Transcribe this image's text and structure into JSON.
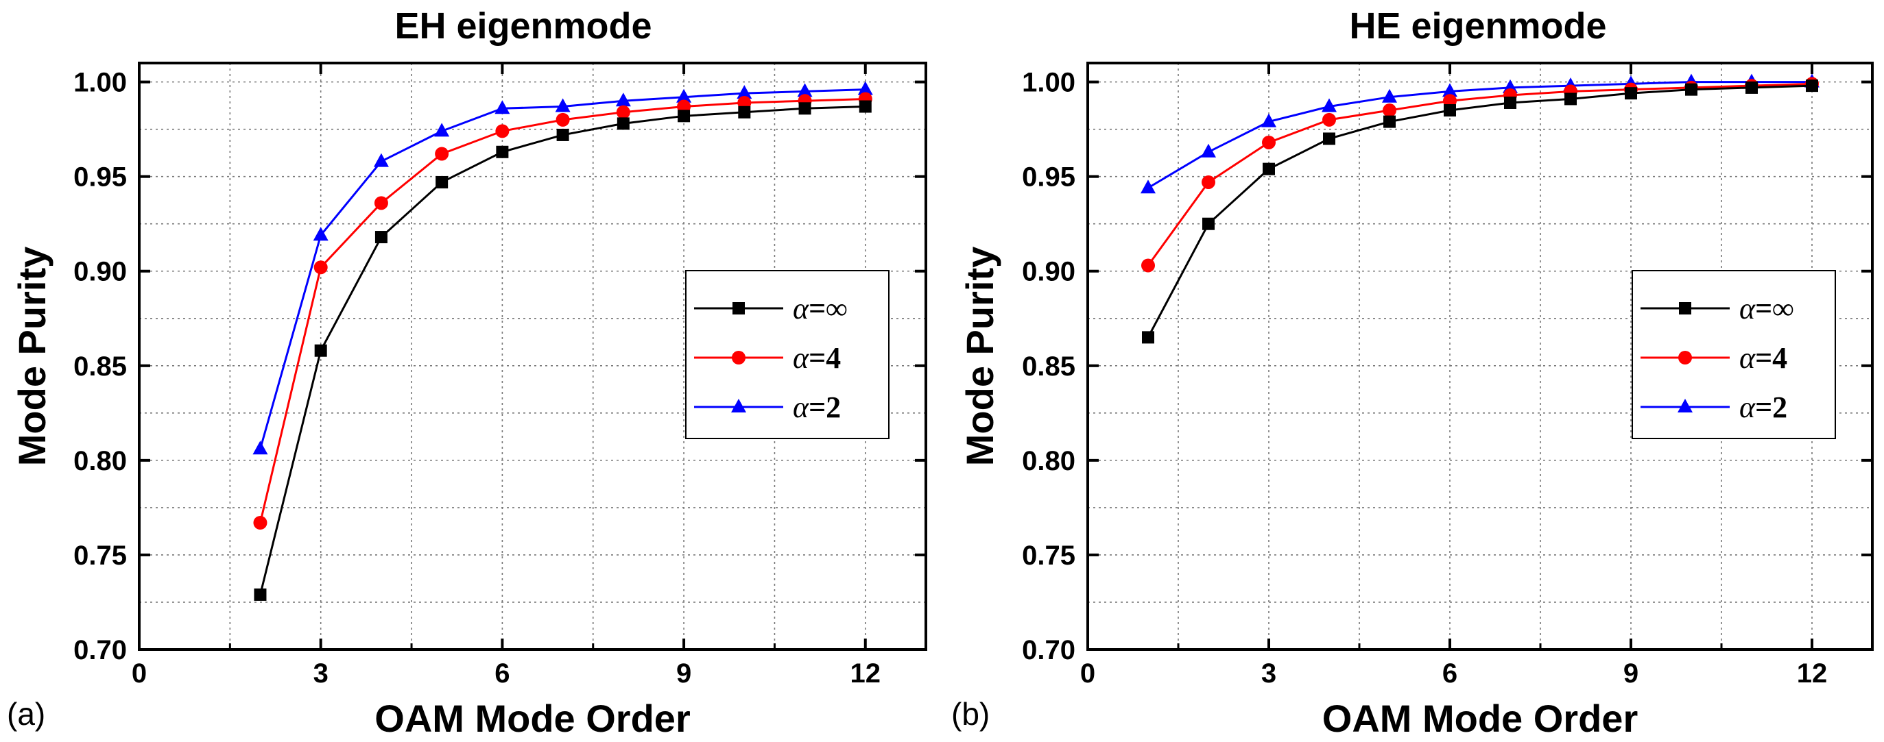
{
  "chart_data": [
    {
      "type": "line",
      "panel_label": "(a)",
      "title": "EH eigenmode",
      "xlabel": "OAM Mode Order",
      "ylabel": "Mode Purity",
      "xlim": [
        0,
        13
      ],
      "ylim": [
        0.7,
        1.01
      ],
      "xticks": [
        0,
        3,
        6,
        9,
        12
      ],
      "xtick_labels": [
        "0",
        "3",
        "6",
        "9",
        "12"
      ],
      "yticks": [
        0.7,
        0.75,
        0.8,
        0.85,
        0.9,
        0.95,
        1.0
      ],
      "ytick_labels": [
        "0.70",
        "0.75",
        "0.80",
        "0.85",
        "0.90",
        "0.95",
        "1.00"
      ],
      "grid": true,
      "legend_position": "right",
      "x": [
        2,
        3,
        4,
        5,
        6,
        7,
        8,
        9,
        10,
        11,
        12
      ],
      "series": [
        {
          "name_symbol": "α",
          "name_value": "=∞",
          "color": "#000000",
          "marker": "square",
          "values": [
            0.729,
            0.858,
            0.918,
            0.947,
            0.963,
            0.972,
            0.978,
            0.982,
            0.984,
            0.986,
            0.987
          ]
        },
        {
          "name_symbol": "α",
          "name_value": "=4",
          "color": "#ff0000",
          "marker": "circle",
          "values": [
            0.767,
            0.902,
            0.936,
            0.962,
            0.974,
            0.98,
            0.984,
            0.987,
            0.989,
            0.99,
            0.991
          ]
        },
        {
          "name_symbol": "α",
          "name_value": "=2",
          "color": "#0000ff",
          "marker": "triangle",
          "values": [
            0.806,
            0.919,
            0.958,
            0.974,
            0.986,
            0.987,
            0.99,
            0.992,
            0.994,
            0.995,
            0.996
          ]
        }
      ]
    },
    {
      "type": "line",
      "panel_label": "(b)",
      "title": "HE eigenmode",
      "xlabel": "OAM Mode Order",
      "ylabel": "Mode Purity",
      "xlim": [
        0,
        13
      ],
      "ylim": [
        0.7,
        1.01
      ],
      "xticks": [
        0,
        3,
        6,
        9,
        12
      ],
      "xtick_labels": [
        "0",
        "3",
        "6",
        "9",
        "12"
      ],
      "yticks": [
        0.7,
        0.75,
        0.8,
        0.85,
        0.9,
        0.95,
        1.0
      ],
      "ytick_labels": [
        "0.70",
        "0.75",
        "0.80",
        "0.85",
        "0.90",
        "0.95",
        "1.00"
      ],
      "grid": true,
      "legend_position": "right",
      "x": [
        1,
        2,
        3,
        4,
        5,
        6,
        7,
        8,
        9,
        10,
        11,
        12
      ],
      "series": [
        {
          "name_symbol": "α",
          "name_value": "=∞",
          "color": "#000000",
          "marker": "square",
          "values": [
            0.865,
            0.925,
            0.954,
            0.97,
            0.979,
            0.985,
            0.989,
            0.991,
            0.994,
            0.996,
            0.997,
            0.998
          ]
        },
        {
          "name_symbol": "α",
          "name_value": "=4",
          "color": "#ff0000",
          "marker": "circle",
          "values": [
            0.903,
            0.947,
            0.968,
            0.98,
            0.985,
            0.99,
            0.993,
            0.995,
            0.996,
            0.997,
            0.998,
            0.999
          ]
        },
        {
          "name_symbol": "α",
          "name_value": "=2",
          "color": "#0000ff",
          "marker": "triangle",
          "values": [
            0.944,
            0.963,
            0.979,
            0.987,
            0.992,
            0.995,
            0.997,
            0.998,
            0.999,
            1.0,
            1.0,
            1.0
          ]
        }
      ]
    }
  ]
}
